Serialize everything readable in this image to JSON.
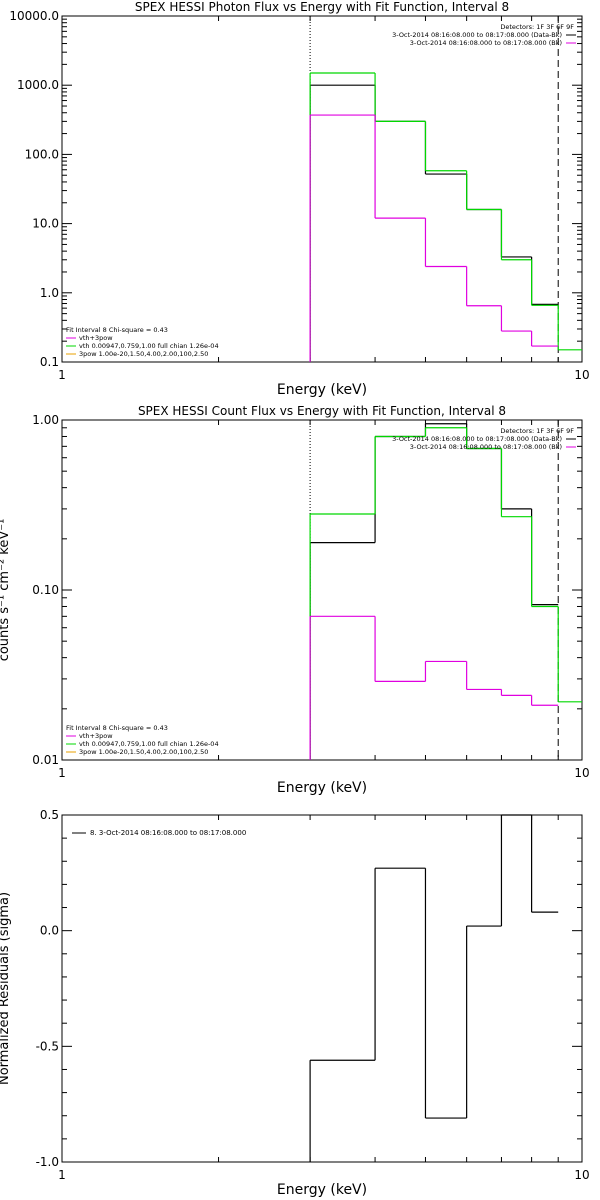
{
  "colors": {
    "black": "#000000",
    "green": "#00d800",
    "magenta": "#e000e0",
    "orange": "#e8a000"
  },
  "chart_data": [
    {
      "type": "line",
      "title": "SPEX HESSI Photon Flux vs Energy with Fit Function, Interval 8",
      "xlabel": "Energy (keV)",
      "ylabel": "",
      "xscale": "log",
      "yscale": "log",
      "xlim": [
        1,
        10
      ],
      "ylim": [
        0.1,
        10000
      ],
      "xticks": [
        "1",
        "10"
      ],
      "yticks": [
        "0.1",
        "1.0",
        "10.0",
        "100.0",
        "1000.0",
        "10000.0"
      ],
      "legend_top_right": [
        "Detectors: 1F 3F 6F 9F",
        "3-Oct-2014 08:16:08.000 to 08:17:08.000 (Data-Bk)",
        "3-Oct-2014 08:16:08.000 to 08:17:08.000 (Bk)"
      ],
      "legend_bottom_left": [
        "Fit Interval 8   Chi-square = 0.43",
        "vth+3pow",
        "vth 0.00947,0.759,1.00  full chian 1.26e-04",
        "3pow 1.00e-20,1.50,4.00,2.00,100,2.50"
      ],
      "markers": {
        "dotted_x": 3.0,
        "dashed_x": 9.0
      },
      "series": [
        {
          "color": "black",
          "edges": [
            3.0,
            4.0,
            5.0,
            6.0,
            7.0,
            8.0,
            9.0
          ],
          "values": [
            1000,
            300,
            52,
            16,
            3.3,
            0.68
          ]
        },
        {
          "color": "green",
          "edges": [
            3.0,
            4.0,
            5.0,
            6.0,
            7.0,
            8.0,
            9.0,
            10.0
          ],
          "values": [
            1500,
            300,
            58,
            16,
            3.0,
            0.66,
            0.15
          ]
        },
        {
          "color": "magenta",
          "edges": [
            3.0,
            4.0,
            5.0,
            6.0,
            7.0,
            8.0,
            9.0
          ],
          "values": [
            370,
            12,
            2.4,
            0.65,
            0.28,
            0.17
          ]
        }
      ]
    },
    {
      "type": "line",
      "title": "SPEX HESSI Count Flux vs Energy with Fit Function, Interval 8",
      "xlabel": "Energy (keV)",
      "ylabel": "counts s⁻¹ cm⁻² keV⁻¹",
      "xscale": "log",
      "yscale": "log",
      "xlim": [
        1,
        10
      ],
      "ylim": [
        0.01,
        1.0
      ],
      "xticks": [
        "1",
        "10"
      ],
      "yticks": [
        "0.01",
        "0.10",
        "1.00"
      ],
      "legend_top_right": [
        "Detectors: 1F 3F 6F 9F",
        "3-Oct-2014 08:16:08.000 to 08:17:08.000 (Data-Bk)",
        "3-Oct-2014 08:16:08.000 to 08:17:08.000 (Bk)"
      ],
      "legend_bottom_left": [
        "Fit Interval 8   Chi-square = 0.43",
        "vth+3pow",
        "vth 0.00947,0.759,1.00  full chian 1.26e-04",
        "3pow 1.00e-20,1.50,4.00,2.00,100,2.50"
      ],
      "markers": {
        "dotted_x": 3.0,
        "dashed_x": 9.0
      },
      "series": [
        {
          "color": "black",
          "edges": [
            3.0,
            4.0,
            5.0,
            6.0,
            7.0,
            8.0,
            9.0
          ],
          "values": [
            0.19,
            0.8,
            0.95,
            0.68,
            0.3,
            0.082
          ]
        },
        {
          "color": "green",
          "edges": [
            3.0,
            4.0,
            5.0,
            6.0,
            7.0,
            8.0,
            9.0,
            10.0
          ],
          "values": [
            0.28,
            0.8,
            0.9,
            0.68,
            0.27,
            0.08,
            0.022
          ]
        },
        {
          "color": "magenta",
          "edges": [
            3.0,
            4.0,
            5.0,
            6.0,
            7.0,
            8.0,
            9.0
          ],
          "values": [
            0.07,
            0.029,
            0.038,
            0.026,
            0.024,
            0.021
          ]
        }
      ]
    },
    {
      "type": "line",
      "title": "",
      "xlabel": "Energy (keV)",
      "ylabel": "Normalized Residuals (sigma)",
      "xscale": "log",
      "yscale": "linear",
      "xlim": [
        1,
        10
      ],
      "ylim": [
        -1.0,
        0.5
      ],
      "xticks": [
        "1",
        "10"
      ],
      "yticks": [
        "-1.0",
        "-0.5",
        "0.0",
        "0.5"
      ],
      "legend_top_left": [
        "8.  3-Oct-2014 08:16:08.000 to 08:17:08.000"
      ],
      "series": [
        {
          "color": "black",
          "edges": [
            3.0,
            4.0,
            5.0,
            6.0,
            7.0,
            8.0,
            9.0
          ],
          "values": [
            -0.56,
            0.27,
            -0.81,
            0.02,
            0.5,
            0.08
          ]
        }
      ]
    }
  ]
}
